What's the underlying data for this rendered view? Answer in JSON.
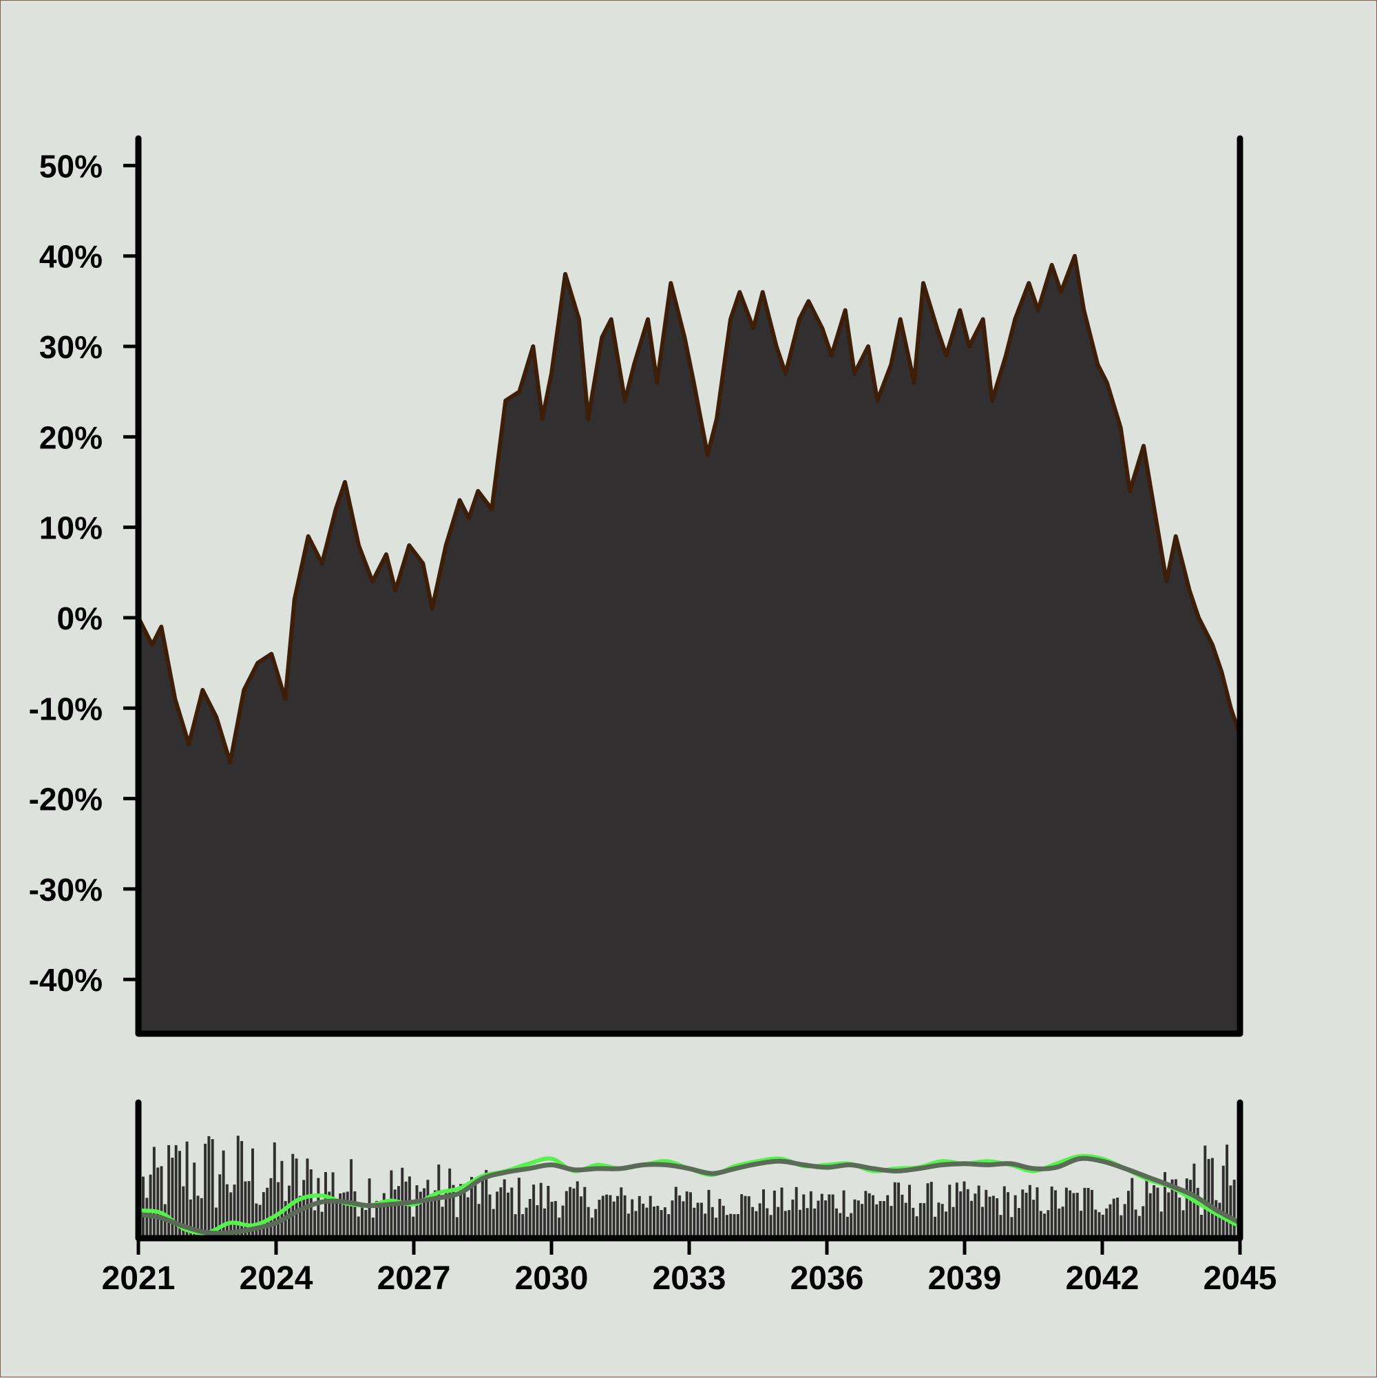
{
  "colors": {
    "background": "#dee2dc",
    "area_fill": "#312f30",
    "area_stroke": "#3d1e08",
    "axis": "#000000",
    "volume_bar": "#312f30",
    "fast_line": "#56f24c",
    "slow_line": "#5a6c57"
  },
  "chart_data": [
    {
      "type": "area",
      "title": "",
      "xlabel": "",
      "ylabel": "",
      "xlim": [
        2021.0,
        2045.0
      ],
      "ylim": [
        -46,
        53
      ],
      "y_ticks": [
        50,
        40,
        30,
        20,
        10,
        0,
        -10,
        -20,
        -30,
        -40
      ],
      "y_tick_labels": [
        "50%",
        "40%",
        "30%",
        "20%",
        "10%",
        "0%",
        "-10%",
        "-20%",
        "-30%",
        "-40%"
      ],
      "grid": false,
      "series": [
        {
          "x": [
            2021.0,
            2021.3,
            2021.5,
            2021.8,
            2022.1,
            2022.4,
            2022.7,
            2023.0,
            2023.3,
            2023.6,
            2023.9,
            2024.2,
            2024.4,
            2024.7,
            2025.0,
            2025.3,
            2025.5,
            2025.8,
            2026.1,
            2026.4,
            2026.6,
            2026.9,
            2027.2,
            2027.4,
            2027.7,
            2028.0,
            2028.2,
            2028.4,
            2028.7,
            2029.0,
            2029.3,
            2029.6,
            2029.8,
            2030.0,
            2030.3,
            2030.6,
            2030.8,
            2031.1,
            2031.3,
            2031.6,
            2031.8,
            2032.1,
            2032.3,
            2032.6,
            2032.9,
            2033.1,
            2033.4,
            2033.6,
            2033.9,
            2034.1,
            2034.4,
            2034.6,
            2034.9,
            2035.1,
            2035.4,
            2035.6,
            2035.9,
            2036.1,
            2036.4,
            2036.6,
            2036.9,
            2037.1,
            2037.4,
            2037.6,
            2037.9,
            2038.1,
            2038.4,
            2038.6,
            2038.9,
            2039.1,
            2039.4,
            2039.6,
            2039.9,
            2040.1,
            2040.4,
            2040.6,
            2040.9,
            2041.1,
            2041.4,
            2041.6,
            2041.9,
            2042.1,
            2042.4,
            2042.6,
            2042.9,
            2043.1,
            2043.4,
            2043.6,
            2043.9,
            2044.1,
            2044.4,
            2044.6,
            2044.8,
            2045.0
          ],
          "values": [
            0,
            -3,
            -1,
            -9,
            -14,
            -8,
            -11,
            -16,
            -8,
            -5,
            -4,
            -9,
            2,
            9,
            6,
            12,
            15,
            8,
            4,
            7,
            3,
            8,
            6,
            1,
            8,
            13,
            11,
            14,
            12,
            24,
            25,
            30,
            22,
            27,
            38,
            33,
            22,
            31,
            33,
            24,
            28,
            33,
            26,
            37,
            31,
            26,
            18,
            22,
            33,
            36,
            32,
            36,
            30,
            27,
            33,
            35,
            32,
            29,
            34,
            27,
            30,
            24,
            28,
            33,
            26,
            37,
            32,
            29,
            34,
            30,
            33,
            24,
            29,
            33,
            37,
            34,
            39,
            36,
            40,
            34,
            28,
            26,
            21,
            14,
            19,
            13,
            4,
            9,
            3,
            0,
            -3,
            -6,
            -10,
            -13
          ]
        }
      ]
    },
    {
      "type": "bar",
      "title": "",
      "xlabel": "",
      "ylabel": "",
      "xlim": [
        2021.0,
        2045.0
      ],
      "x_ticks": [
        2021,
        2024,
        2027,
        2030,
        2033,
        2036,
        2039,
        2042,
        2045
      ],
      "x_tick_labels": [
        "2021",
        "2024",
        "2027",
        "2030",
        "2033",
        "2036",
        "2039",
        "2042",
        "2045"
      ],
      "ylim": [
        0,
        1
      ],
      "grid": false,
      "bar_level_range": [
        0.12,
        0.92
      ],
      "bar_envelope": {
        "x": [
          2021.0,
          2022.0,
          2023.0,
          2024.0,
          2025.0,
          2026.0,
          2027.0,
          2028.0,
          2029.0,
          2030.0,
          2031.0,
          2032.0,
          2033.0,
          2034.0,
          2035.0,
          2036.0,
          2037.0,
          2038.0,
          2039.0,
          2040.0,
          2041.0,
          2042.0,
          2043.0,
          2044.0,
          2045.0
        ],
        "max_level": [
          0.62,
          0.9,
          0.86,
          0.74,
          0.66,
          0.6,
          0.6,
          0.55,
          0.48,
          0.44,
          0.4,
          0.38,
          0.38,
          0.37,
          0.37,
          0.39,
          0.44,
          0.42,
          0.42,
          0.4,
          0.4,
          0.42,
          0.5,
          0.68,
          0.78
        ]
      },
      "series": [
        {
          "x": [
            2021.0,
            2021.5,
            2022.0,
            2022.5,
            2023.0,
            2023.5,
            2024.0,
            2024.5,
            2025.0,
            2025.5,
            2026.0,
            2026.5,
            2027.0,
            2027.5,
            2028.0,
            2028.5,
            2029.0,
            2029.5,
            2030.0,
            2030.5,
            2031.0,
            2031.5,
            2032.0,
            2032.5,
            2033.0,
            2033.5,
            2034.0,
            2034.5,
            2035.0,
            2035.5,
            2036.0,
            2036.5,
            2037.0,
            2037.5,
            2038.0,
            2038.5,
            2039.0,
            2039.5,
            2040.0,
            2040.5,
            2041.0,
            2041.5,
            2042.0,
            2042.5,
            2043.0,
            2043.5,
            2044.0,
            2044.5,
            2045.0
          ],
          "values": [
            0.18,
            0.16,
            0.03,
            0.0,
            0.08,
            0.06,
            0.14,
            0.27,
            0.3,
            0.24,
            0.22,
            0.26,
            0.23,
            0.32,
            0.36,
            0.46,
            0.5,
            0.56,
            0.6,
            0.5,
            0.55,
            0.52,
            0.55,
            0.58,
            0.52,
            0.47,
            0.54,
            0.58,
            0.6,
            0.54,
            0.55,
            0.56,
            0.5,
            0.52,
            0.53,
            0.58,
            0.56,
            0.58,
            0.55,
            0.5,
            0.56,
            0.62,
            0.6,
            0.52,
            0.43,
            0.37,
            0.26,
            0.15,
            0.05
          ]
        },
        {
          "x": [
            2021.0,
            2021.5,
            2022.0,
            2022.5,
            2023.0,
            2023.5,
            2024.0,
            2024.5,
            2025.0,
            2025.5,
            2026.0,
            2026.5,
            2027.0,
            2027.5,
            2028.0,
            2028.5,
            2029.0,
            2029.5,
            2030.0,
            2030.5,
            2031.0,
            2031.5,
            2032.0,
            2032.5,
            2033.0,
            2033.5,
            2034.0,
            2034.5,
            2035.0,
            2035.5,
            2036.0,
            2036.5,
            2037.0,
            2037.5,
            2038.0,
            2038.5,
            2039.0,
            2039.5,
            2040.0,
            2040.5,
            2041.0,
            2041.5,
            2042.0,
            2042.5,
            2043.0,
            2043.5,
            2044.0,
            2044.5,
            2045.0
          ],
          "values": [
            0.15,
            0.12,
            0.05,
            0.0,
            0.0,
            0.03,
            0.08,
            0.18,
            0.25,
            0.25,
            0.22,
            0.23,
            0.25,
            0.28,
            0.32,
            0.44,
            0.49,
            0.52,
            0.55,
            0.51,
            0.52,
            0.52,
            0.55,
            0.55,
            0.52,
            0.48,
            0.52,
            0.56,
            0.58,
            0.55,
            0.53,
            0.55,
            0.52,
            0.5,
            0.52,
            0.55,
            0.56,
            0.55,
            0.56,
            0.52,
            0.53,
            0.6,
            0.58,
            0.52,
            0.45,
            0.38,
            0.3,
            0.18,
            0.08
          ]
        }
      ]
    }
  ]
}
